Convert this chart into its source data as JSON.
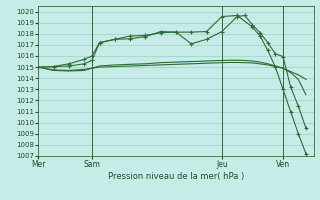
{
  "background_color": "#c5ece6",
  "grid_color": "#9ecec8",
  "line_color": "#2d6e35",
  "title": "Pression niveau de la mer( hPa )",
  "xlabel_ticks": [
    "Mer",
    "Sam",
    "Jeu",
    "Ven"
  ],
  "xlabel_tick_positions": [
    0,
    7,
    24,
    32
  ],
  "ylim": [
    1007,
    1020.5
  ],
  "yticks": [
    1007,
    1008,
    1009,
    1010,
    1011,
    1012,
    1013,
    1014,
    1015,
    1016,
    1017,
    1018,
    1019,
    1020
  ],
  "xlim": [
    0,
    36
  ],
  "vlines": [
    7,
    24,
    32
  ],
  "figsize": [
    3.2,
    2.0
  ],
  "dpi": 100,
  "line1_x": [
    0,
    2,
    4,
    6,
    7,
    8,
    10,
    12,
    14,
    16,
    18,
    20,
    22,
    24,
    25,
    26,
    27,
    28,
    29,
    30,
    31,
    32,
    33,
    34,
    35
  ],
  "line1_y": [
    1015.0,
    1014.7,
    1014.65,
    1014.7,
    1014.9,
    1015.1,
    1015.2,
    1015.25,
    1015.3,
    1015.4,
    1015.45,
    1015.5,
    1015.55,
    1015.6,
    1015.62,
    1015.62,
    1015.6,
    1015.55,
    1015.45,
    1015.3,
    1015.1,
    1014.9,
    1014.6,
    1014.3,
    1013.9
  ],
  "line1_marker": false,
  "line2_x": [
    0,
    2,
    4,
    6,
    7,
    8,
    10,
    12,
    14,
    16,
    18,
    20,
    22,
    24,
    25,
    26,
    28,
    30,
    32,
    33,
    34,
    35
  ],
  "line2_y": [
    1015.0,
    1014.75,
    1014.7,
    1014.8,
    1014.9,
    1015.0,
    1015.05,
    1015.1,
    1015.15,
    1015.2,
    1015.25,
    1015.3,
    1015.35,
    1015.4,
    1015.42,
    1015.42,
    1015.38,
    1015.2,
    1014.9,
    1014.5,
    1013.9,
    1012.5
  ],
  "line2_marker": false,
  "line3_x": [
    0,
    2,
    4,
    6,
    7,
    8,
    10,
    12,
    14,
    16,
    18,
    20,
    22,
    24,
    26,
    27,
    28,
    29,
    30,
    31,
    32,
    33,
    34,
    35
  ],
  "line3_y": [
    1015.0,
    1015.05,
    1015.3,
    1015.7,
    1016.0,
    1017.2,
    1017.5,
    1017.55,
    1017.75,
    1018.2,
    1018.15,
    1017.1,
    1017.5,
    1018.2,
    1019.55,
    1019.65,
    1018.8,
    1018.1,
    1017.2,
    1016.2,
    1015.95,
    1013.2,
    1011.5,
    1009.5
  ],
  "line3_marker": true,
  "line4_x": [
    0,
    2,
    4,
    6,
    7,
    8,
    10,
    12,
    14,
    16,
    18,
    20,
    22,
    24,
    26,
    28,
    29,
    30,
    31,
    32,
    33,
    34,
    35
  ],
  "line4_y": [
    1015.0,
    1015.05,
    1015.1,
    1015.3,
    1015.6,
    1017.2,
    1017.5,
    1017.8,
    1017.85,
    1018.1,
    1018.15,
    1018.15,
    1018.2,
    1019.55,
    1019.65,
    1018.6,
    1017.8,
    1016.5,
    1015.0,
    1013.0,
    1011.0,
    1009.0,
    1007.2
  ],
  "line4_marker": true
}
